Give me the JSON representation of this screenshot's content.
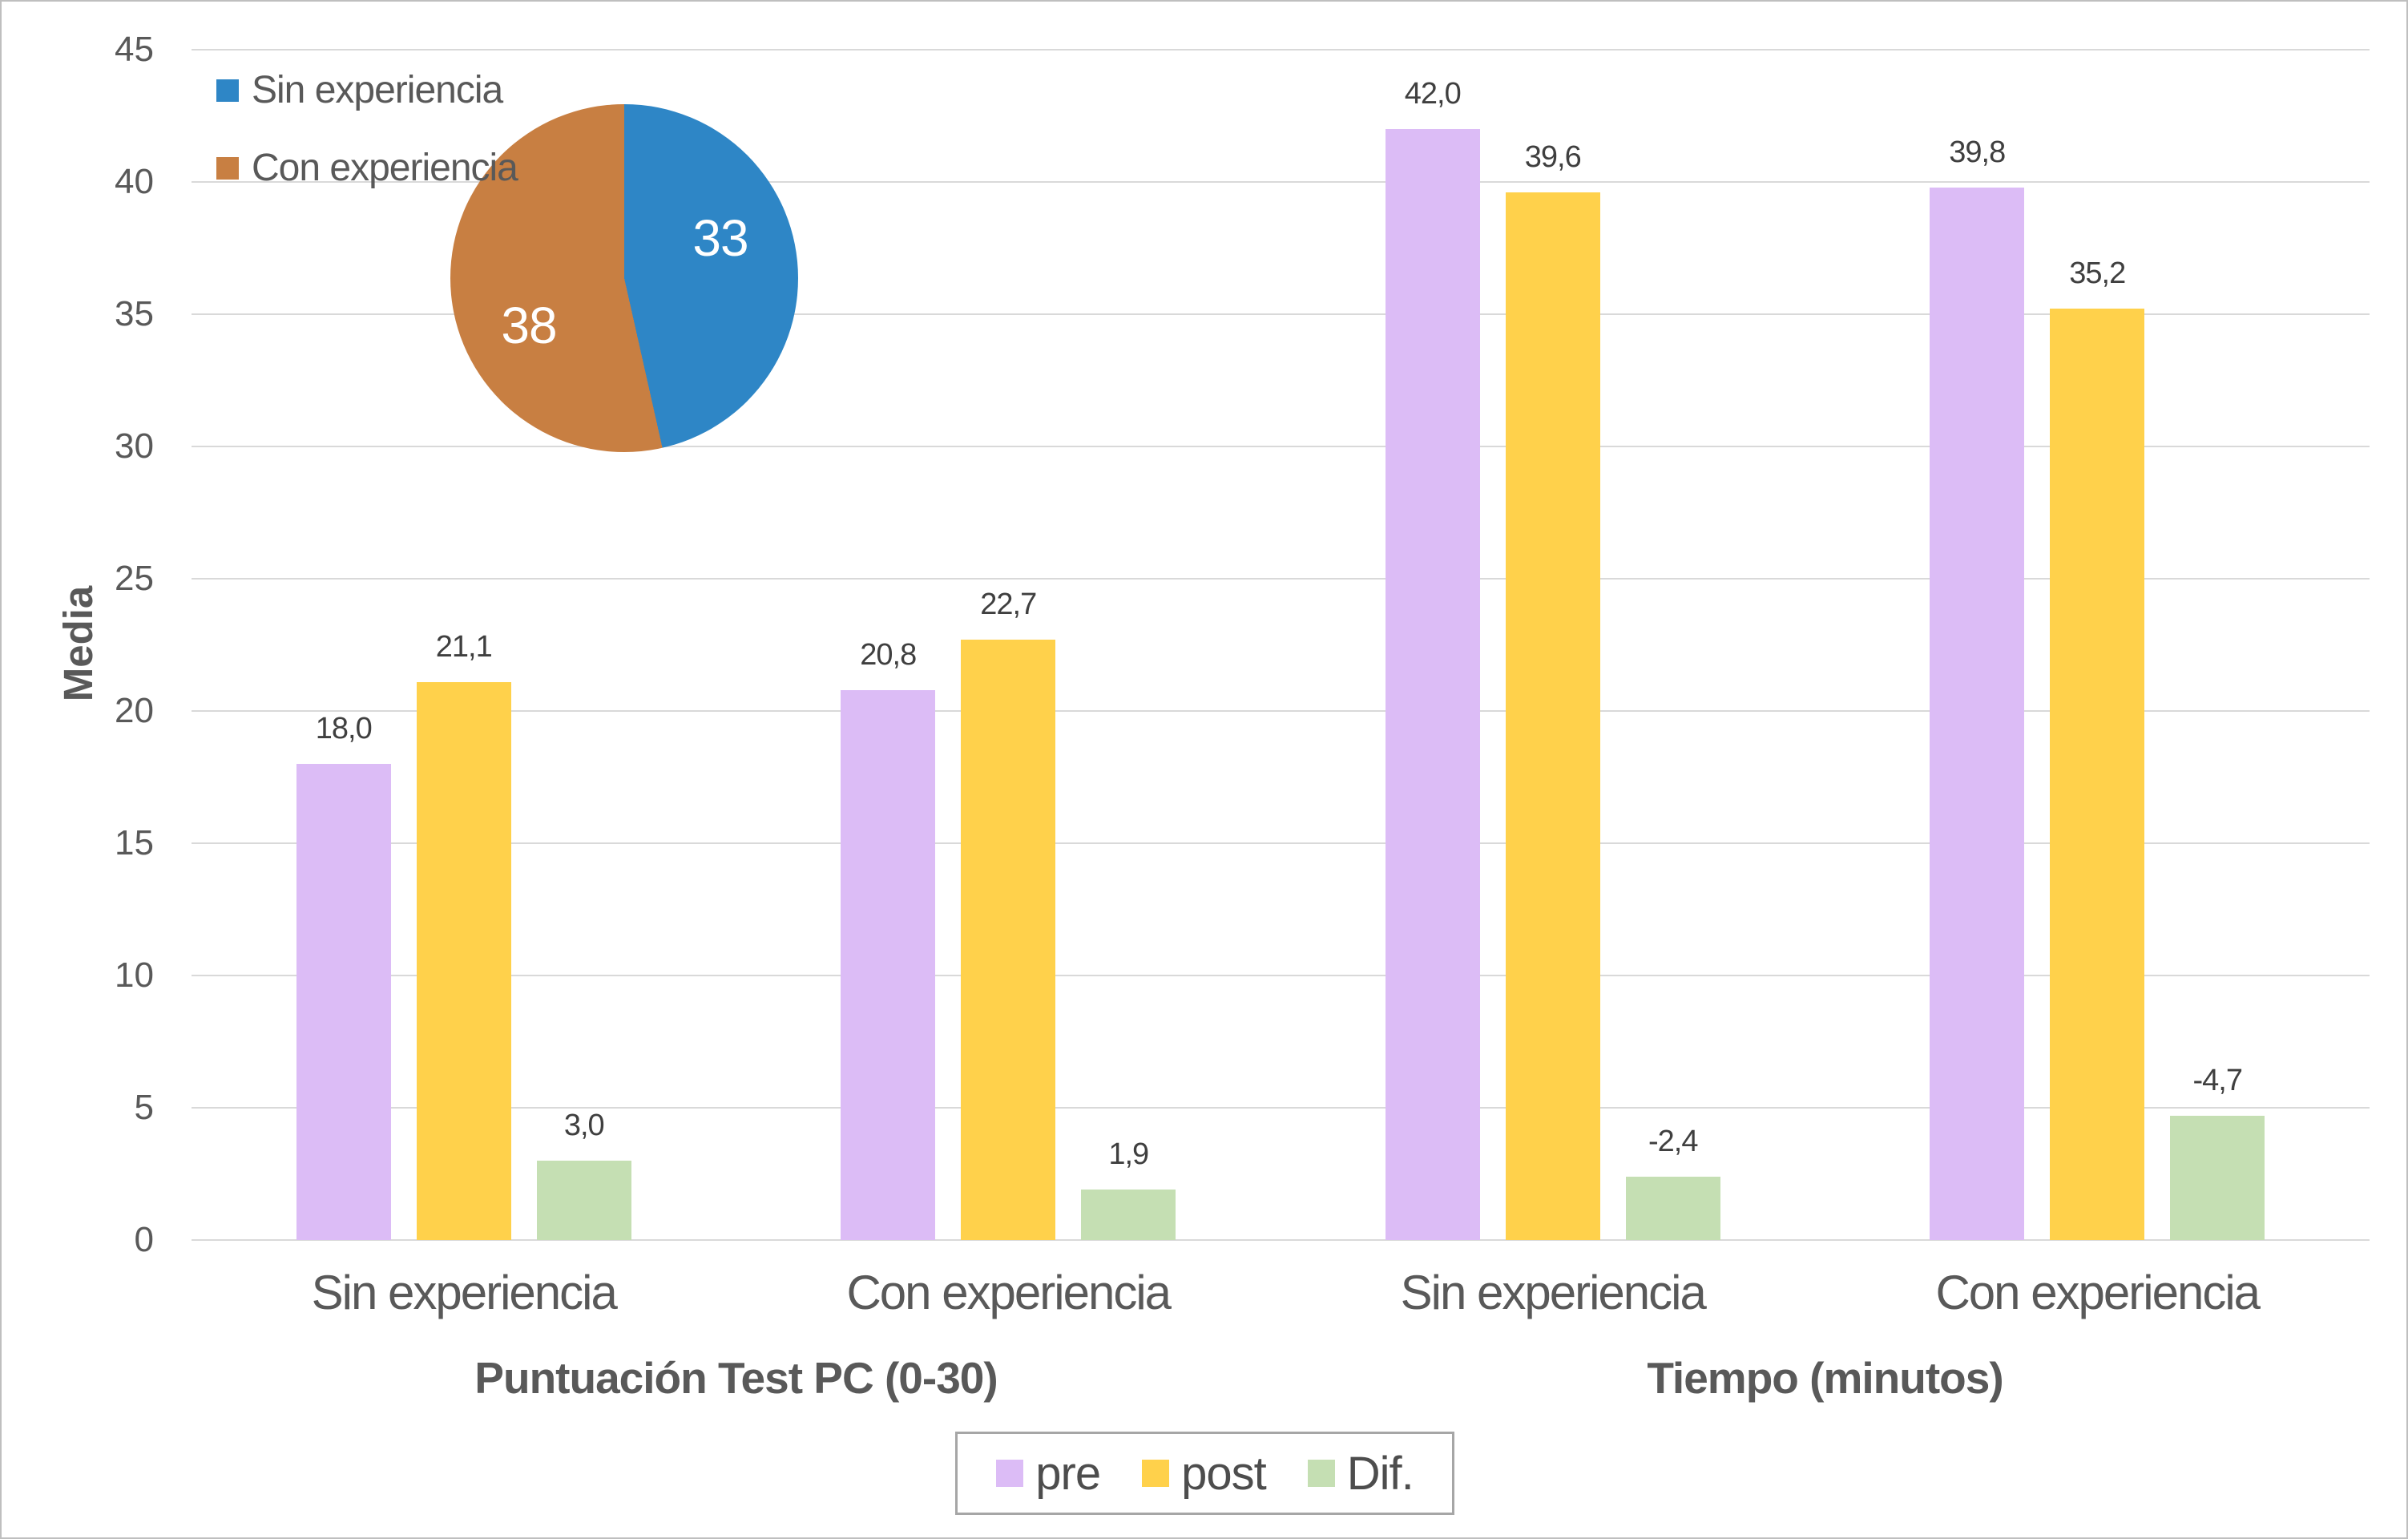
{
  "axes": {
    "y_title": "Media",
    "yticks": [
      "45",
      "40",
      "35",
      "30",
      "25",
      "20",
      "15",
      "10",
      "5",
      "0"
    ]
  },
  "pie_legend": {
    "items": [
      {
        "label": "Sin experiencia",
        "color": "#2e86c6"
      },
      {
        "label": "Con experiencia",
        "color": "#c87f42"
      }
    ]
  },
  "bar_legend": {
    "items": [
      {
        "label": "pre",
        "color": "#dcbcf6"
      },
      {
        "label": "post",
        "color": "#ffd14b"
      },
      {
        "label": "Dif.",
        "color": "#c5dfb3"
      }
    ]
  },
  "chart_data": {
    "type": "bar",
    "title": "",
    "xlabel": "",
    "ylabel": "Media",
    "ylim": [
      0,
      45
    ],
    "ytick_step": 5,
    "grid": true,
    "legend_position": "bottom",
    "categories": [
      "Sin experiencia",
      "Con experiencia",
      "Sin experiencia",
      "Con experiencia"
    ],
    "category_group_labels": [
      "Puntuación Test PC (0-30)",
      "Tiempo (minutos)"
    ],
    "series": [
      {
        "name": "pre",
        "color": "#dcbcf6",
        "values": [
          18.0,
          20.8,
          42.0,
          39.8
        ],
        "data_labels": [
          "18,0",
          "20,8",
          "42,0",
          "39,8"
        ]
      },
      {
        "name": "post",
        "color": "#ffd14b",
        "values": [
          21.1,
          22.7,
          39.6,
          35.2
        ],
        "data_labels": [
          "21,1",
          "22,7",
          "39,6",
          "35,2"
        ]
      },
      {
        "name": "Dif.",
        "color": "#c5dfb3",
        "values": [
          3.0,
          1.9,
          -2.4,
          -4.7
        ],
        "data_labels": [
          "3,0",
          "1,9",
          "-2,4",
          "-4,7"
        ],
        "note": "negative values are drawn as positive-height bars with negative labels"
      }
    ],
    "inset_pie": {
      "type": "pie",
      "start_angle_deg": 0,
      "legend_position": "top-left",
      "slices": [
        {
          "label": "Sin experiencia",
          "value": 33,
          "data_label": "33",
          "color": "#2e86c6"
        },
        {
          "label": "Con experiencia",
          "value": 38,
          "data_label": "38",
          "color": "#c87f42"
        }
      ]
    }
  }
}
